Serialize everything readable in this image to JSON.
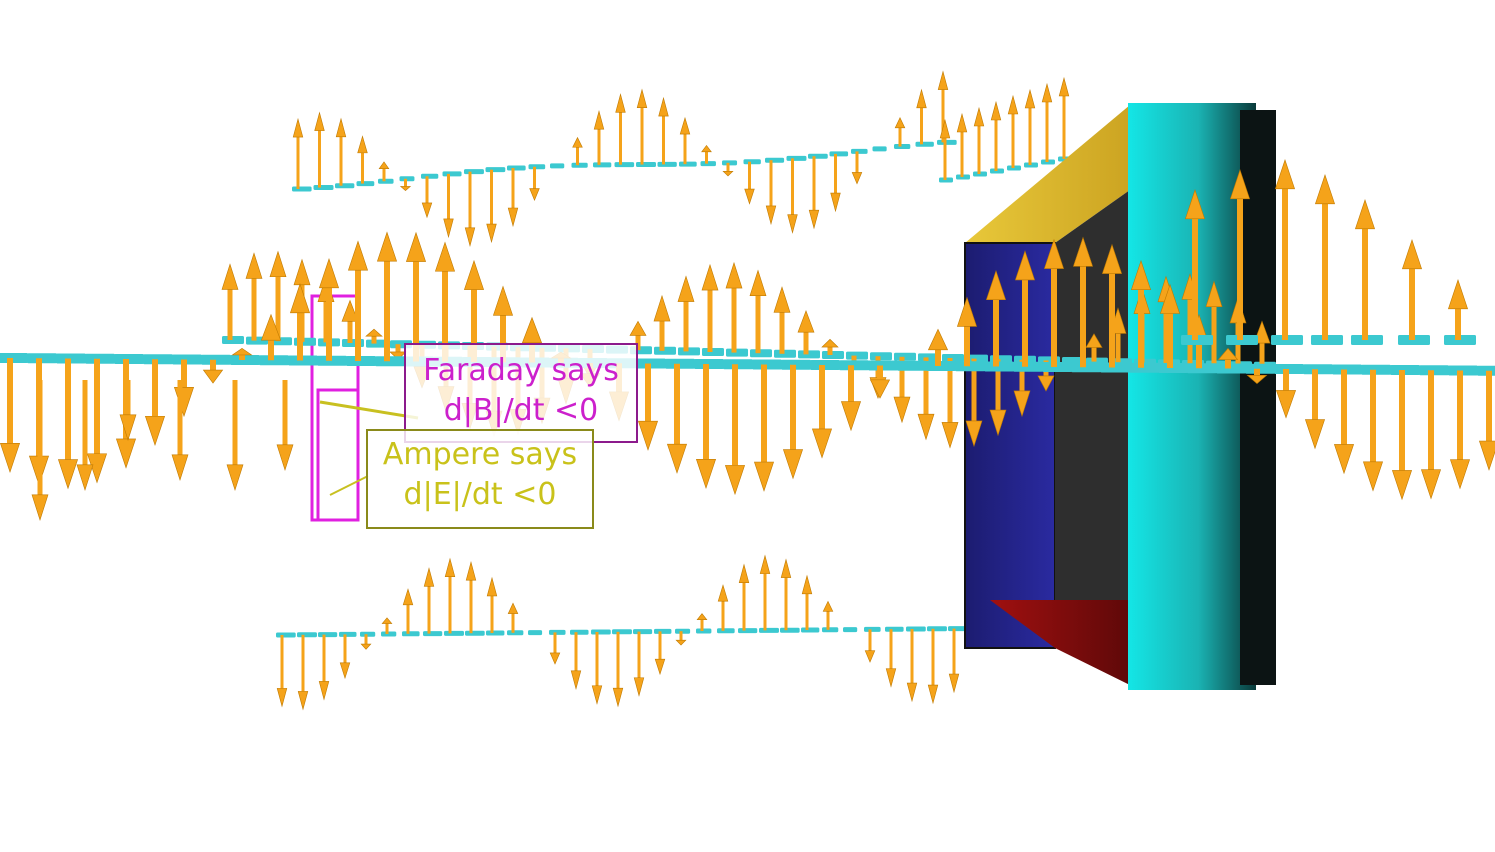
{
  "colors": {
    "electric_field": "#f5a31a",
    "magnetic_field": "#3cc9d0",
    "faraday_loop": "#e020e0",
    "ampere_loop": "#c8c020",
    "background": "#ffffff"
  },
  "labels": {
    "faraday": {
      "line1": "Faraday says",
      "line2": "d|B|/dt <0",
      "color": "#cc20cc",
      "border": "#8c1a8c"
    },
    "ampere": {
      "line1": "Ampere says",
      "line2": "d|E|/dt <0",
      "color": "#c9c21a",
      "border": "#8a8a1a"
    }
  },
  "icons": {
    "electric-arrow": "orange-arrow",
    "magnetic-arrow": "cyan-arrow",
    "detector-slab": "3d-box",
    "detector-cylinder": "3d-cylinder"
  }
}
